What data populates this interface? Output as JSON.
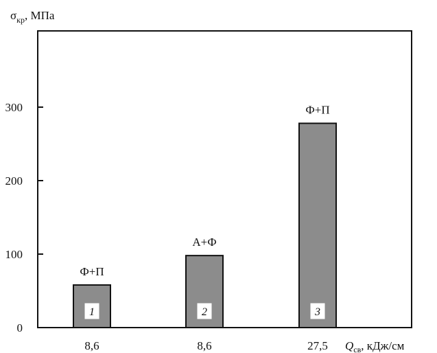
{
  "chart_data": {
    "type": "bar",
    "categories": [
      "8,6",
      "8,6",
      "27,5"
    ],
    "values": [
      58,
      98,
      278
    ],
    "bar_top_labels": [
      "Ф+П",
      "А+Ф",
      "Ф+П"
    ],
    "bar_numbers": [
      "1",
      "2",
      "3"
    ],
    "ylim": [
      0,
      400
    ],
    "yticks": [
      0,
      100,
      200,
      300
    ],
    "ytick_labels": [
      "0",
      "100",
      "200",
      "300"
    ],
    "ylabel": {
      "main": "σ",
      "sub": "кр",
      "rest": ", МПа"
    },
    "xlabel": {
      "main": "Q",
      "sub": "св",
      "rest": ", кДж/см"
    },
    "grid": false,
    "colors": {
      "bar": "#8c8c8c",
      "bar_edge": "#111111",
      "axis": "#111111"
    }
  }
}
